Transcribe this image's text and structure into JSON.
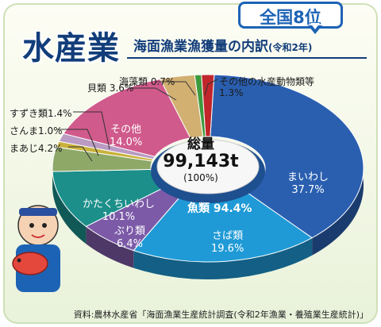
{
  "rank_badge": "全国8位",
  "title_main": "水産業",
  "title_sub": "海面漁業漁獲量の内訳",
  "title_year": "(令和2年)",
  "total": {
    "label": "総量",
    "value": "99,143t",
    "percent": "(100%)"
  },
  "fish_group_label": "魚類 94.4%",
  "source": "資料:農林水産省「海面漁業生産統計調査(令和2年漁業・養殖業生産統計)」",
  "labels": {
    "iwashi": "まいわし",
    "iwashi_pct": "37.7%",
    "saba": "さば類",
    "saba_pct": "19.6%",
    "buri": "ぶり類",
    "buri_pct": "6.4%",
    "katakuchi": "かたくちいわし",
    "katakuchi_pct": "10.1%",
    "aji": "まあじ4.2%",
    "sanma": "さんま1.0%",
    "suzuki": "すずき類1.4%",
    "sonota": "その他",
    "sonota_pct": "14.0%",
    "kai": "貝類 3.6%",
    "kaiso": "海藻類 0.7%",
    "suisan_name": "その他の水産動物類等",
    "suisan_pct": "1.3%"
  },
  "chart_data": {
    "type": "pie",
    "title": "海面漁業漁獲量の内訳(令和2年)",
    "total": "99,143t",
    "categories": [
      "まいわし",
      "さば類",
      "ぶり類",
      "かたくちいわし",
      "まあじ",
      "さんま",
      "すずき類",
      "その他",
      "貝類",
      "海藻類",
      "その他の水産動物類等"
    ],
    "values": [
      37.7,
      19.6,
      6.4,
      10.1,
      4.2,
      1.0,
      1.4,
      14.0,
      3.6,
      0.7,
      1.3
    ],
    "colors": [
      "#2a5fb0",
      "#1f9ad6",
      "#7c5aa8",
      "#1c8f8a",
      "#8ea868",
      "#c9b23c",
      "#b99bc3",
      "#d05a8c",
      "#d2b071",
      "#3e9a3e",
      "#c0262b"
    ],
    "group": {
      "name": "魚類",
      "percent": 94.4
    }
  }
}
